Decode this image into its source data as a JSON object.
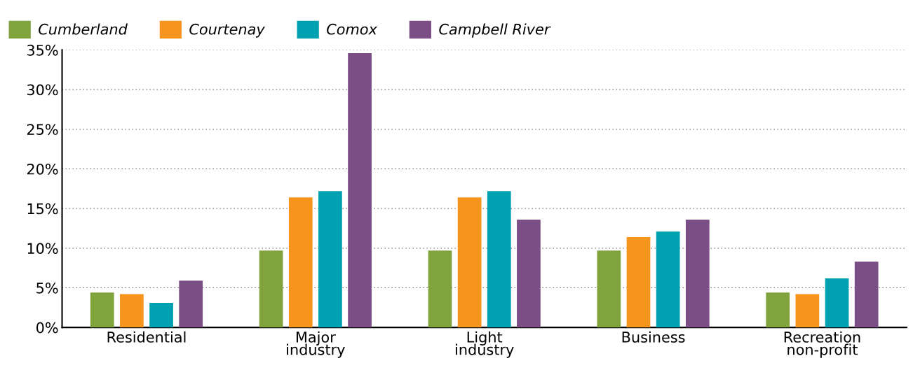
{
  "chart_data": {
    "type": "bar",
    "categories": [
      "Residential",
      "Major\nindustry",
      "Light\nindustry",
      "Business",
      "Recreation\nnon-profit"
    ],
    "series": [
      {
        "name": "Cumberland",
        "color": "#80a33d",
        "values": [
          4.4,
          9.7,
          9.7,
          9.7,
          4.4
        ]
      },
      {
        "name": "Courtenay",
        "color": "#f7941d",
        "values": [
          4.2,
          16.4,
          16.4,
          11.4,
          4.2
        ]
      },
      {
        "name": "Comox",
        "color": "#00a1b1",
        "values": [
          3.1,
          17.2,
          17.2,
          12.1,
          6.2
        ]
      },
      {
        "name": "Campbell River",
        "color": "#7b4f85",
        "values": [
          5.9,
          34.6,
          13.6,
          13.6,
          8.3
        ]
      }
    ],
    "ylim": [
      0,
      35
    ],
    "yticks": [
      {
        "value": 0,
        "label": "0%"
      },
      {
        "value": 5,
        "label": "5%"
      },
      {
        "value": 10,
        "label": "10%"
      },
      {
        "value": 15,
        "label": "15%"
      },
      {
        "value": 20,
        "label": "20%"
      },
      {
        "value": 25,
        "label": "25%"
      },
      {
        "value": 30,
        "label": "30%"
      },
      {
        "value": 35,
        "label": "35%"
      }
    ],
    "grid": "y",
    "legend": "top left"
  }
}
